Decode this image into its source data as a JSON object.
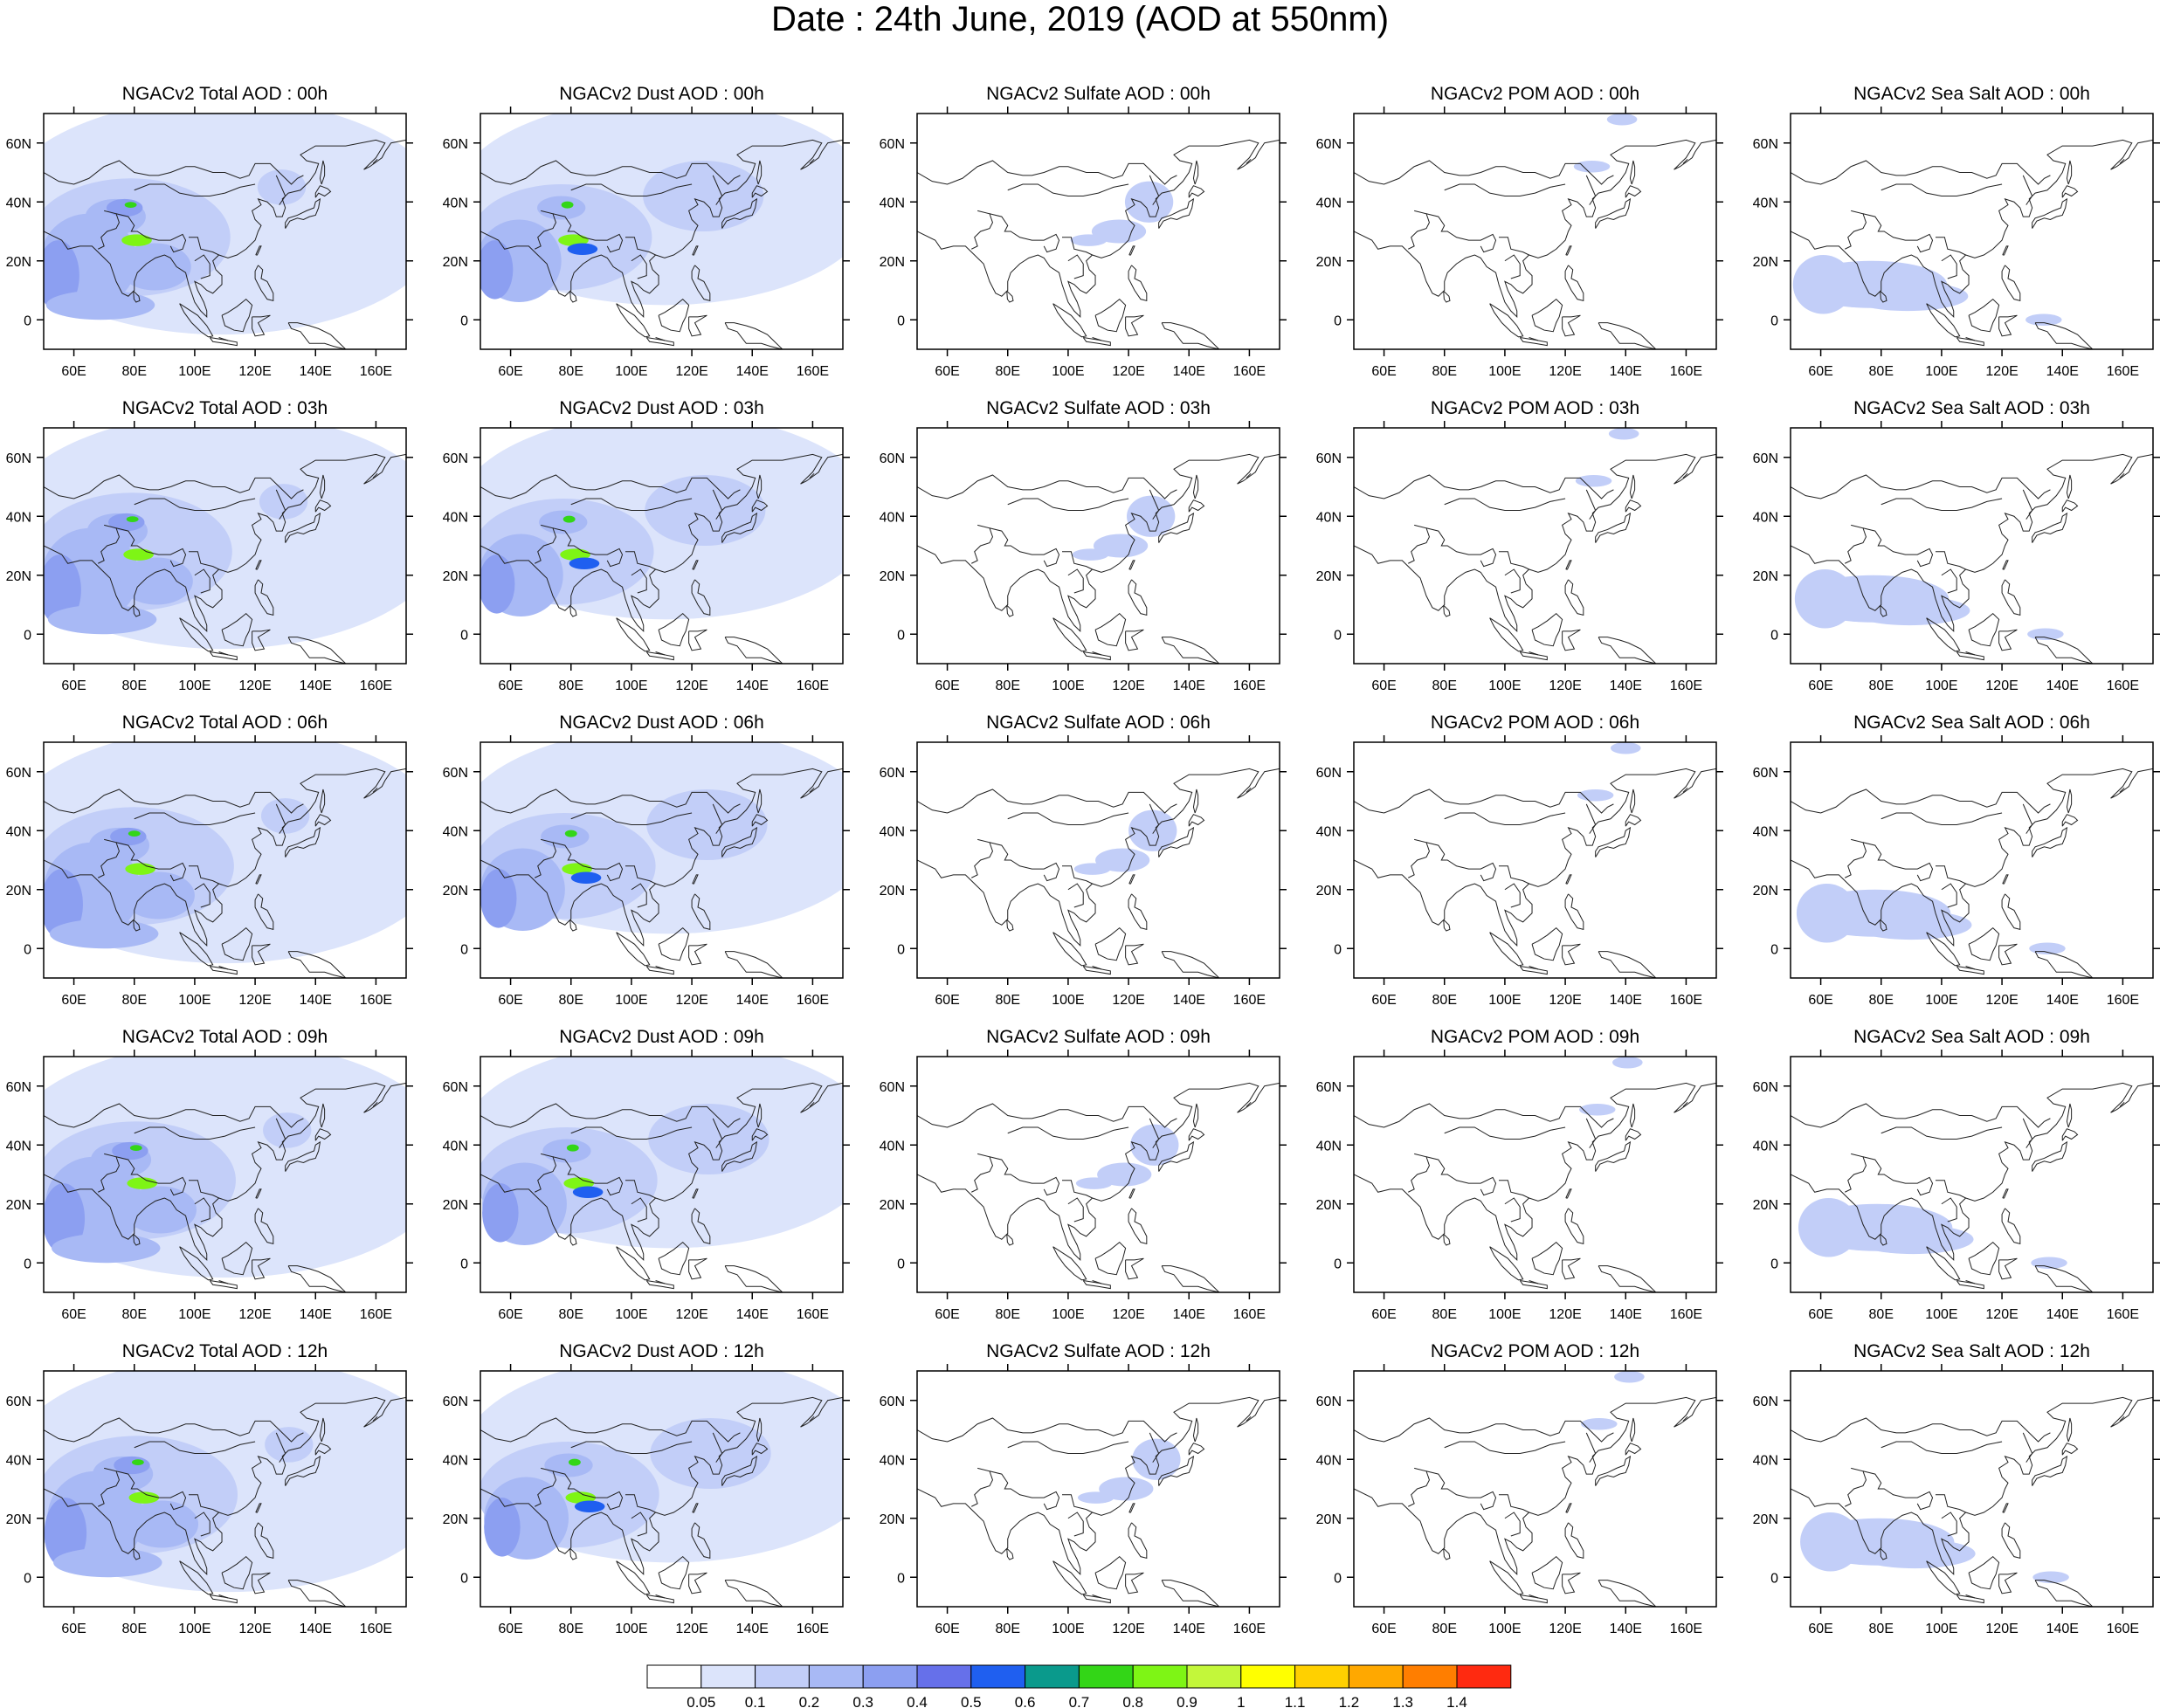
{
  "title": "Date : 24th June, 2019 (AOD at 550nm)",
  "panels": [
    [
      "NGACv2 Total AOD : 00h",
      "NGACv2 Dust AOD : 00h",
      "NGACv2 Sulfate AOD : 00h",
      "NGACv2 POM AOD : 00h",
      "NGACv2 Sea Salt AOD : 00h"
    ],
    [
      "NGACv2 Total AOD : 03h",
      "NGACv2 Dust AOD : 03h",
      "NGACv2 Sulfate AOD : 03h",
      "NGACv2 POM AOD : 03h",
      "NGACv2 Sea Salt AOD : 03h"
    ],
    [
      "NGACv2 Total AOD : 06h",
      "NGACv2 Dust AOD : 06h",
      "NGACv2 Sulfate AOD : 06h",
      "NGACv2 POM AOD : 06h",
      "NGACv2 Sea Salt AOD : 06h"
    ],
    [
      "NGACv2 Total AOD : 09h",
      "NGACv2 Dust AOD : 09h",
      "NGACv2 Sulfate AOD : 09h",
      "NGACv2 POM AOD : 09h",
      "NGACv2 Sea Salt  AOD : 09h"
    ],
    [
      "NGACv2 Total AOD  : 12h",
      "NGACv2 Dust AOD : 12h",
      "NGACv2 Sulfate AOD : 12h",
      "NGACv2 POM  AOD : 12h",
      "NGACv2 Sea Salt  AOD : 12h"
    ]
  ],
  "map_extent": {
    "lon": [
      50,
      170
    ],
    "lat": [
      -10,
      70
    ]
  },
  "lat_ticks": [
    0,
    20,
    40,
    60
  ],
  "lat_labels": [
    "0",
    "20N",
    "40N",
    "60N"
  ],
  "lon_ticks": [
    60,
    80,
    100,
    120,
    140,
    160
  ],
  "lon_labels": [
    "60E",
    "80E",
    "100E",
    "120E",
    "140E",
    "160E"
  ],
  "colorbar": {
    "colors": [
      "#ffffff",
      "#dce4fb",
      "#c2cef8",
      "#a8b9f5",
      "#8c9ff1",
      "#6670ea",
      "#1f5ff0",
      "#0a9a8c",
      "#33d617",
      "#7ef515",
      "#c3f73a",
      "#ffff00",
      "#ffd000",
      "#ffa800",
      "#ff7e00",
      "#ff2a10"
    ],
    "labels": [
      "0.05",
      "0.1",
      "0.2",
      "0.3",
      "0.4",
      "0.5",
      "0.6",
      "0.7",
      "0.8",
      "0.9",
      "1",
      "1.1",
      "1.2",
      "1.3",
      "1.4"
    ]
  }
}
